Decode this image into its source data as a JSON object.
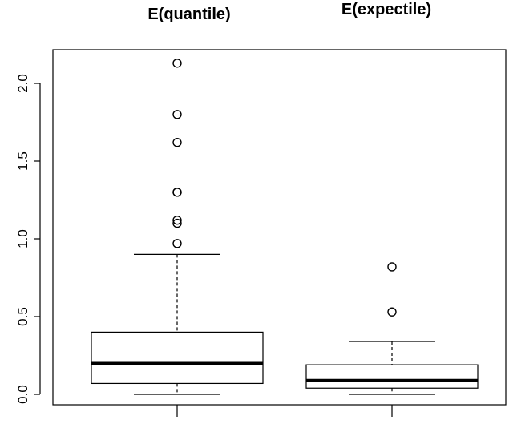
{
  "chart_data": {
    "type": "boxplot",
    "ylim": [
      0,
      2.2
    ],
    "yticks": [
      "0.0",
      "0.5",
      "1.0",
      "1.5",
      "2.0"
    ],
    "grid": false,
    "legend": "none",
    "boxes": [
      {
        "title": "E(quantile)",
        "whisker_low": 0.0,
        "q1": 0.07,
        "median": 0.2,
        "q3": 0.4,
        "whisker_high": 0.9,
        "outliers": [
          0.97,
          1.1,
          1.12,
          1.3,
          1.3,
          1.62,
          1.8,
          2.13
        ]
      },
      {
        "title": "E(expectile)",
        "whisker_low": 0.0,
        "q1": 0.04,
        "median": 0.09,
        "q3": 0.19,
        "whisker_high": 0.34,
        "outliers": [
          0.53,
          0.82
        ]
      }
    ]
  }
}
